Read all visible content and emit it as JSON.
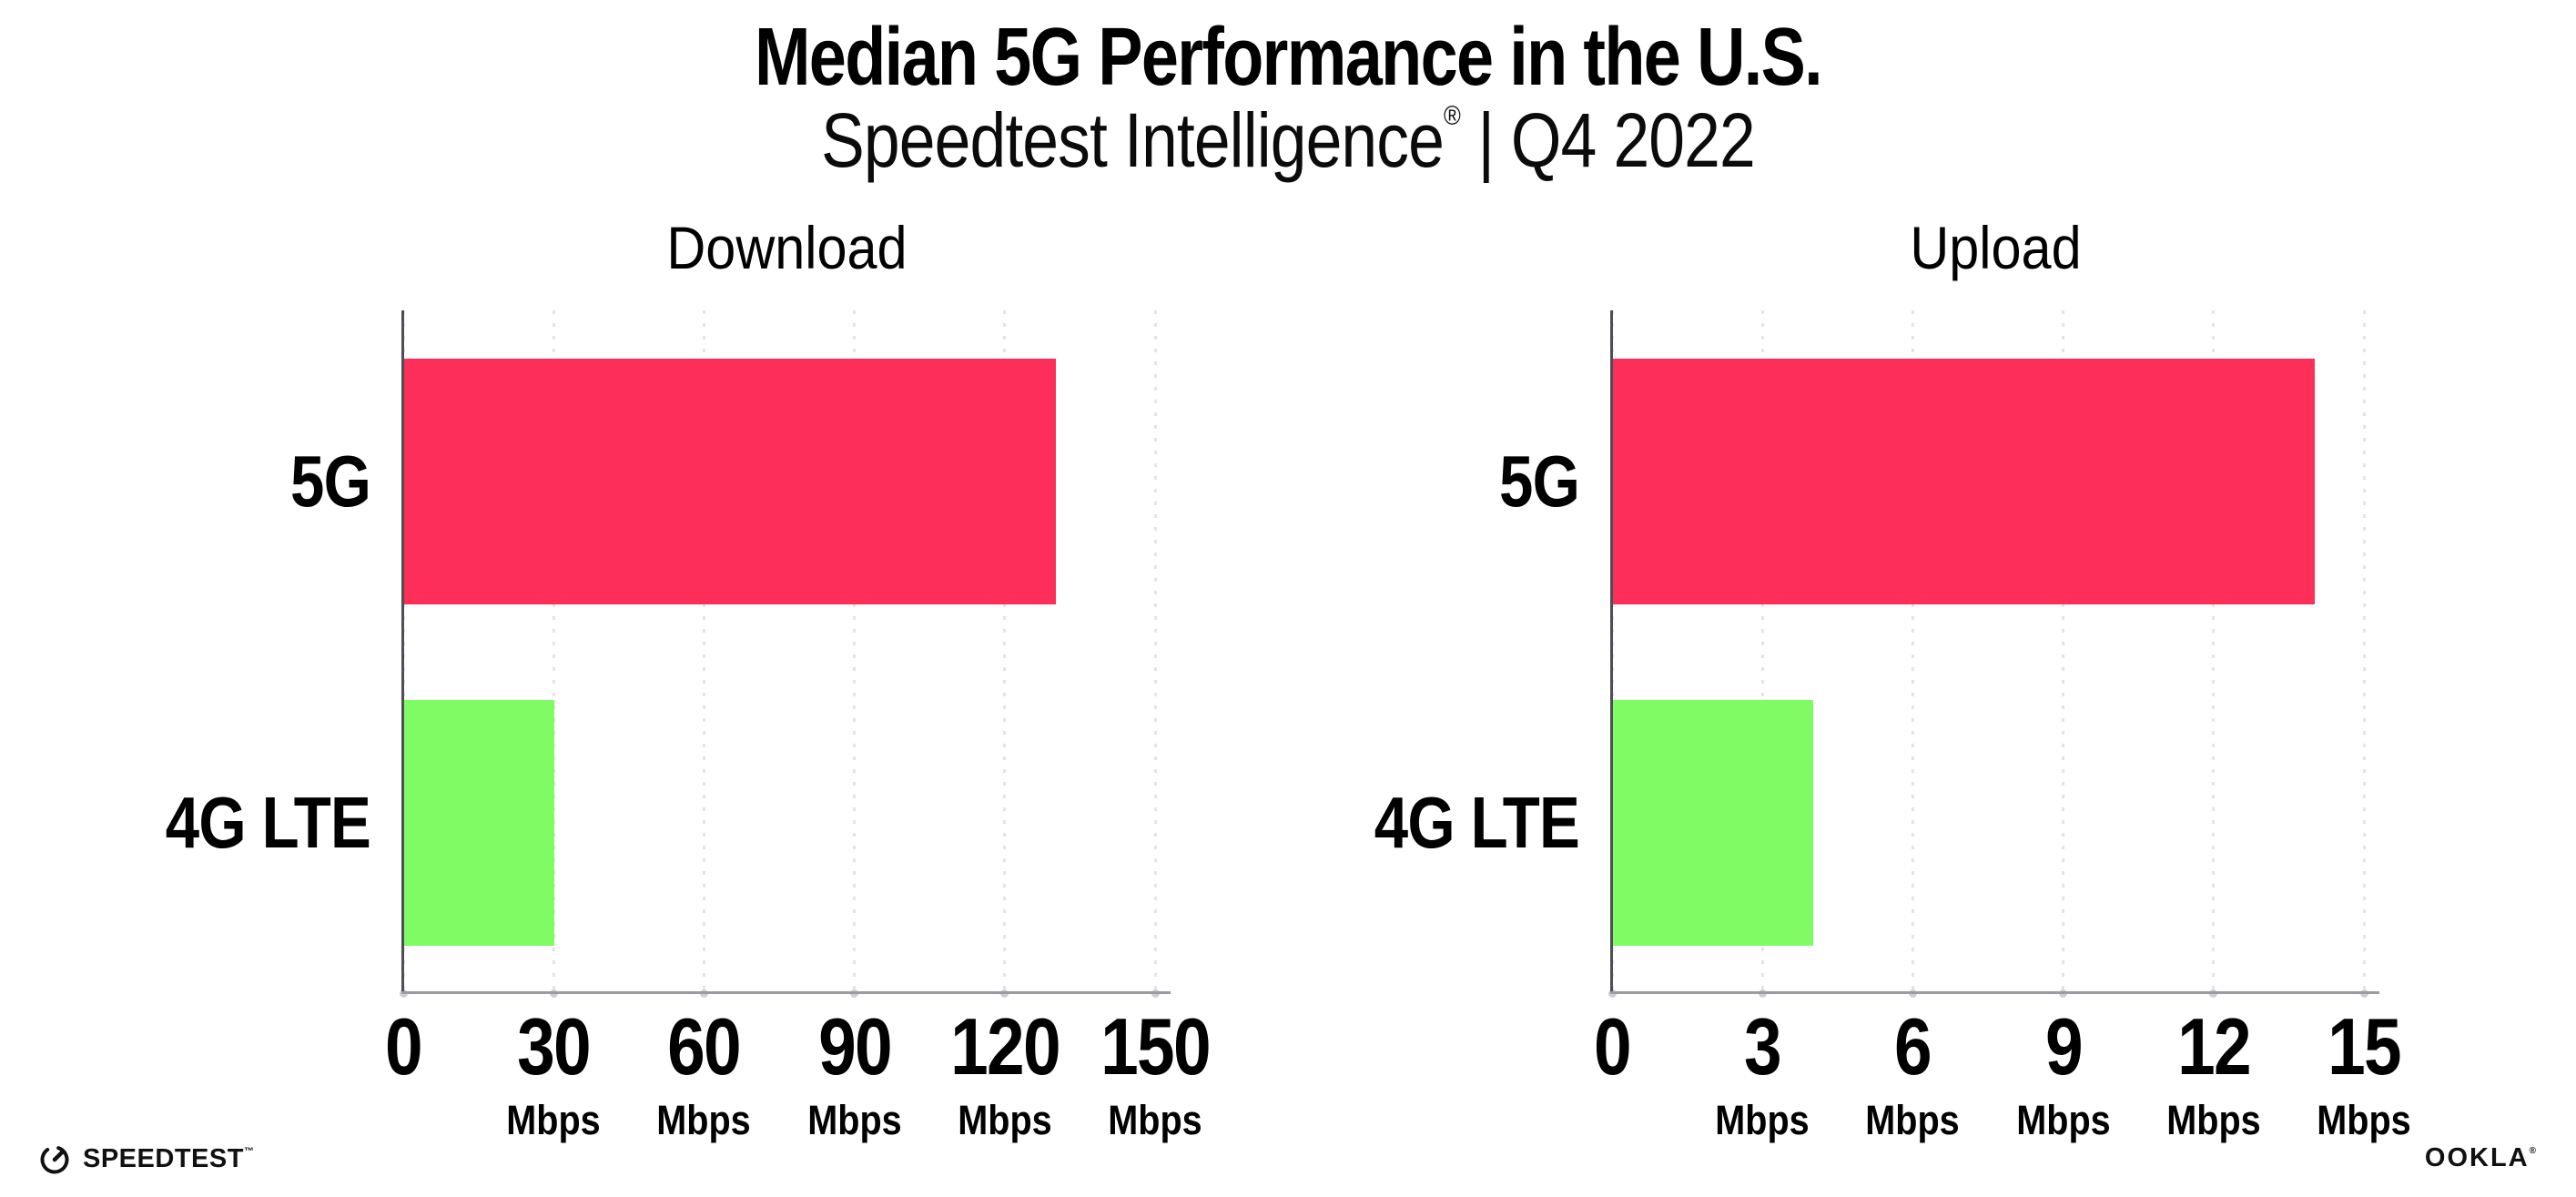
{
  "header": {
    "title": "Median 5G Performance in the U.S.",
    "subtitle_brand": "Speedtest Intelligence",
    "subtitle_reg": "®",
    "subtitle_sep": "|",
    "subtitle_period": "Q4 2022"
  },
  "colors": {
    "bar_5g": "#FD2E58",
    "bar_4g_lte": "#7FFB64",
    "gridline": "#E3E3ED",
    "tick_dot": "#CDCDD8",
    "x_axis": "#9B9BA1",
    "y_axis": "#4E4E55",
    "text": "#000000"
  },
  "chart_data": [
    {
      "type": "bar",
      "orientation": "horizontal",
      "title": "Download",
      "categories": [
        "5G",
        "4G LTE"
      ],
      "values": [
        130,
        30
      ],
      "unit": "Mbps",
      "xlim": [
        0,
        150
      ],
      "xticks": [
        0,
        30,
        60,
        90,
        120,
        150
      ],
      "grid": "vertical-dotted",
      "legend": "none",
      "bar_colors": [
        "#FD2E58",
        "#7FFB64"
      ]
    },
    {
      "type": "bar",
      "orientation": "horizontal",
      "title": "Upload",
      "categories": [
        "5G",
        "4G LTE"
      ],
      "values": [
        14,
        4
      ],
      "unit": "Mbps",
      "xlim": [
        0,
        15
      ],
      "xticks": [
        0,
        3,
        6,
        9,
        12,
        15
      ],
      "grid": "vertical-dotted",
      "legend": "none",
      "bar_colors": [
        "#FD2E58",
        "#7FFB64"
      ]
    }
  ],
  "footer": {
    "speedtest_logo": "SPEEDTEST",
    "speedtest_tm": "™",
    "ookla_logo": "OOKLA",
    "ookla_reg": "®"
  }
}
